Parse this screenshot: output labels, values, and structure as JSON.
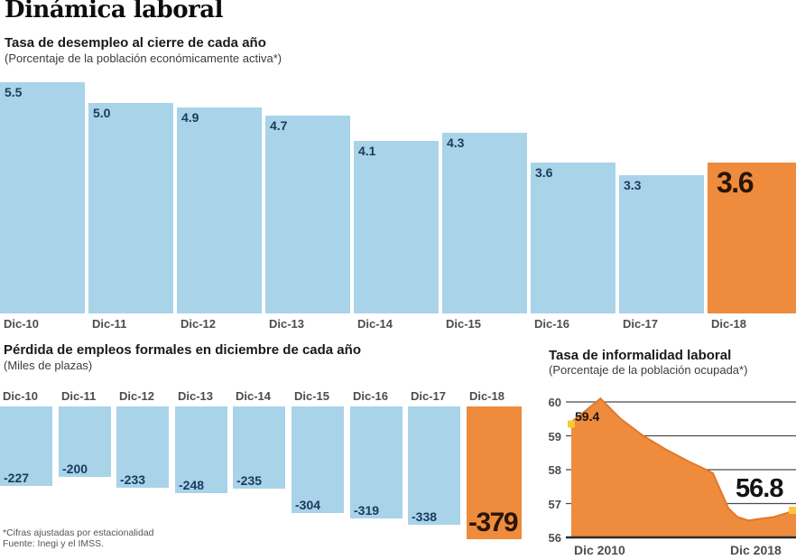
{
  "page": {
    "title": "Dinámica laboral",
    "footnote1": "*Cifras ajustadas por estacionalidad",
    "footnote2": "Fuente: Inegi y el IMSS."
  },
  "colors": {
    "bar_blue": "#a9d3e9",
    "bar_orange": "#ee8b3d",
    "line_orange": "#e2782a",
    "value_navy": "#1b3a5c",
    "big_label": "#2a1505",
    "axis_text": "#4d4d4d",
    "grid": "#4b4b4b",
    "baseline": "#2b2b2b",
    "marker_yellow": "#fbc83a",
    "point_label": "#141414"
  },
  "chart_data": [
    {
      "id": "desempleo",
      "type": "bar",
      "title": "Tasa de desempleo al cierre de cada año",
      "subtitle": "(Porcentaje de la población económicamente activa*)",
      "categories": [
        "Dic-10",
        "Dic-11",
        "Dic-12",
        "Dic-13",
        "Dic-14",
        "Dic-15",
        "Dic-16",
        "Dic-17",
        "Dic-18"
      ],
      "values": [
        5.5,
        5.0,
        4.9,
        4.7,
        4.1,
        4.3,
        3.6,
        3.3,
        3.6
      ],
      "value_labels": [
        "5.5",
        "5.0",
        "4.9",
        "4.7",
        "4.1",
        "4.3",
        "3.6",
        "3.3",
        "3.6"
      ],
      "highlight_index": 8,
      "ylim": [
        0,
        5.5
      ],
      "legend": "none",
      "grid": false
    },
    {
      "id": "perdida-empleos",
      "type": "bar",
      "title": "Pérdida de empleos formales en diciembre de cada año",
      "subtitle": "(Miles de plazas)",
      "categories": [
        "Dic-10",
        "Dic-11",
        "Dic-12",
        "Dic-13",
        "Dic-14",
        "Dic-15",
        "Dic-16",
        "Dic-17",
        "Dic-18"
      ],
      "values": [
        -227,
        -200,
        -233,
        -248,
        -235,
        -304,
        -319,
        -338,
        -379
      ],
      "value_labels": [
        "-227",
        "-200",
        "-233",
        "-248",
        "-235",
        "-304",
        "-319",
        "-338",
        "-379"
      ],
      "highlight_index": 8,
      "ylim": [
        -400,
        0
      ],
      "legend": "none",
      "grid": false
    },
    {
      "id": "informalidad",
      "type": "area",
      "title": "Tasa de informalidad laboral",
      "subtitle": "(Porcentaje de la población ocupada*)",
      "x_axis_labels": [
        "Dic 2010",
        "Dic 2018"
      ],
      "yticks": [
        60,
        59,
        58,
        57,
        56
      ],
      "ylim": [
        56,
        60
      ],
      "start_label": "59.4",
      "end_label": "56.8",
      "grid": true,
      "legend": "none",
      "points": [
        [
          0.0,
          59.4
        ],
        [
          0.13,
          60.1
        ],
        [
          0.22,
          59.5
        ],
        [
          0.32,
          59.0
        ],
        [
          0.42,
          58.6
        ],
        [
          0.52,
          58.25
        ],
        [
          0.6,
          58.0
        ],
        [
          0.63,
          57.9
        ],
        [
          0.7,
          56.85
        ],
        [
          0.74,
          56.6
        ],
        [
          0.79,
          56.5
        ],
        [
          0.84,
          56.55
        ],
        [
          0.9,
          56.6
        ],
        [
          1.0,
          56.8
        ]
      ]
    }
  ]
}
